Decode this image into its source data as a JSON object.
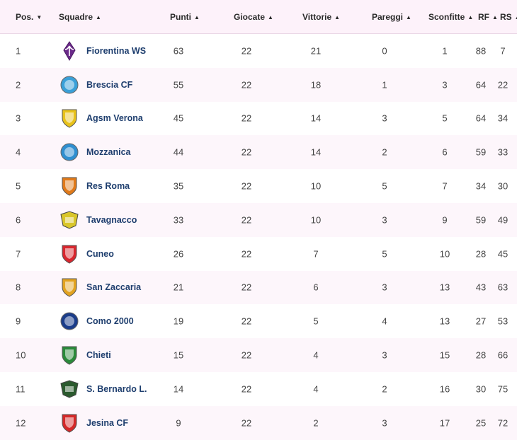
{
  "columns": {
    "pos": "Pos.",
    "squadre": "Squadre",
    "punti": "Punti",
    "giocate": "Giocate",
    "vittorie": "Vittorie",
    "pareggi": "Pareggi",
    "sconfitte": "Sconfitte",
    "rf": "RF",
    "rs": "RS"
  },
  "rows": [
    {
      "pos": "1",
      "team": "Fiorentina WS",
      "punti": "63",
      "giocate": "22",
      "vittorie": "21",
      "pareggi": "0",
      "sconfitte": "1",
      "rf": "88",
      "rs": "7",
      "logo_icon": "fiorentina-lily-logo",
      "logo_color": "#6b2a8a"
    },
    {
      "pos": "2",
      "team": "Brescia CF",
      "punti": "55",
      "giocate": "22",
      "vittorie": "18",
      "pareggi": "1",
      "sconfitte": "3",
      "rf": "64",
      "rs": "22",
      "logo_icon": "brescia-lion-logo",
      "logo_color": "#3aa0d8"
    },
    {
      "pos": "3",
      "team": "Agsm Verona",
      "punti": "45",
      "giocate": "22",
      "vittorie": "14",
      "pareggi": "3",
      "sconfitte": "5",
      "rf": "64",
      "rs": "34",
      "logo_icon": "verona-shield-logo",
      "logo_color": "#e8c21a"
    },
    {
      "pos": "4",
      "team": "Mozzanica",
      "punti": "44",
      "giocate": "22",
      "vittorie": "14",
      "pareggi": "2",
      "sconfitte": "6",
      "rf": "59",
      "rs": "33",
      "logo_icon": "mozzanica-ball-logo",
      "logo_color": "#2f8fd0"
    },
    {
      "pos": "5",
      "team": "Res Roma",
      "punti": "35",
      "giocate": "22",
      "vittorie": "10",
      "pareggi": "5",
      "sconfitte": "7",
      "rf": "34",
      "rs": "30",
      "logo_icon": "res-roma-shield-logo",
      "logo_color": "#e07a1a"
    },
    {
      "pos": "6",
      "team": "Tavagnacco",
      "punti": "33",
      "giocate": "22",
      "vittorie": "10",
      "pareggi": "3",
      "sconfitte": "9",
      "rf": "59",
      "rs": "49",
      "logo_icon": "tavagnacco-crest-logo",
      "logo_color": "#d9c62a"
    },
    {
      "pos": "7",
      "team": "Cuneo",
      "punti": "26",
      "giocate": "22",
      "vittorie": "7",
      "pareggi": "5",
      "sconfitte": "10",
      "rf": "28",
      "rs": "45",
      "logo_icon": "cuneo-shield-logo",
      "logo_color": "#d8262e"
    },
    {
      "pos": "8",
      "team": "San Zaccaria",
      "punti": "21",
      "giocate": "22",
      "vittorie": "6",
      "pareggi": "3",
      "sconfitte": "13",
      "rf": "43",
      "rs": "63",
      "logo_icon": "san-zaccaria-shield-logo",
      "logo_color": "#e2a320"
    },
    {
      "pos": "9",
      "team": "Como 2000",
      "punti": "19",
      "giocate": "22",
      "vittorie": "5",
      "pareggi": "4",
      "sconfitte": "13",
      "rf": "27",
      "rs": "53",
      "logo_icon": "como-ball-logo",
      "logo_color": "#1b3d8a"
    },
    {
      "pos": "10",
      "team": "Chieti",
      "punti": "15",
      "giocate": "22",
      "vittorie": "4",
      "pareggi": "3",
      "sconfitte": "15",
      "rf": "28",
      "rs": "66",
      "logo_icon": "chieti-shield-logo",
      "logo_color": "#2a8a3a"
    },
    {
      "pos": "11",
      "team": "S. Bernardo L.",
      "punti": "14",
      "giocate": "22",
      "vittorie": "4",
      "pareggi": "2",
      "sconfitte": "16",
      "rf": "30",
      "rs": "75",
      "logo_icon": "san-bernardo-crest-logo",
      "logo_color": "#2b5a2e"
    },
    {
      "pos": "12",
      "team": "Jesina CF",
      "punti": "9",
      "giocate": "22",
      "vittorie": "2",
      "pareggi": "3",
      "sconfitte": "17",
      "rf": "25",
      "rs": "72",
      "logo_icon": "jesina-shield-logo",
      "logo_color": "#d42828"
    }
  ]
}
